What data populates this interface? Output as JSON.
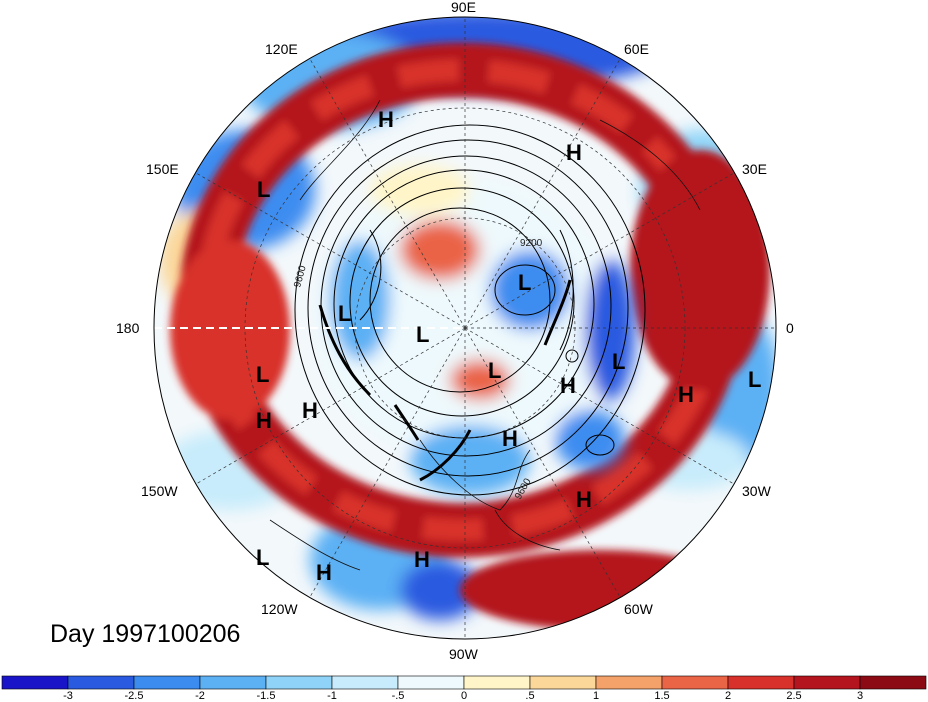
{
  "title": "Day 1997100206",
  "longitude_labels": [
    "90E",
    "60E",
    "30E",
    "0",
    "30W",
    "60W",
    "90W",
    "120W",
    "150W",
    "180",
    "150E",
    "120E"
  ],
  "contour_labels": [
    "9200",
    "9600"
  ],
  "pressure_centers": [
    {
      "letter": "H"
    },
    {
      "letter": "H"
    },
    {
      "letter": "L"
    },
    {
      "letter": "L"
    },
    {
      "letter": "L"
    },
    {
      "letter": "L"
    },
    {
      "letter": "L"
    },
    {
      "letter": "L"
    },
    {
      "letter": "H"
    },
    {
      "letter": "H"
    },
    {
      "letter": "L"
    },
    {
      "letter": "H"
    },
    {
      "letter": "L"
    },
    {
      "letter": "H"
    },
    {
      "letter": "H"
    },
    {
      "letter": "H"
    },
    {
      "letter": "L"
    },
    {
      "letter": "H"
    },
    {
      "letter": "H"
    },
    {
      "letter": "L"
    }
  ],
  "colorbar": {
    "tick_labels": [
      "-3",
      "-2.5",
      "-2",
      "-1.5",
      "-1",
      "-.5",
      "0",
      ".5",
      "1",
      "1.5",
      "2",
      "2.5",
      "3"
    ],
    "colors": [
      "#1a14c8",
      "#2a5ae0",
      "#3c8cf0",
      "#5cb0f4",
      "#8fd4f8",
      "#c8ecfb",
      "#eef9fd",
      "#fff5c8",
      "#fbd79a",
      "#f4a26a",
      "#ea6446",
      "#d8302a",
      "#b4141e",
      "#8c0a14"
    ]
  }
}
